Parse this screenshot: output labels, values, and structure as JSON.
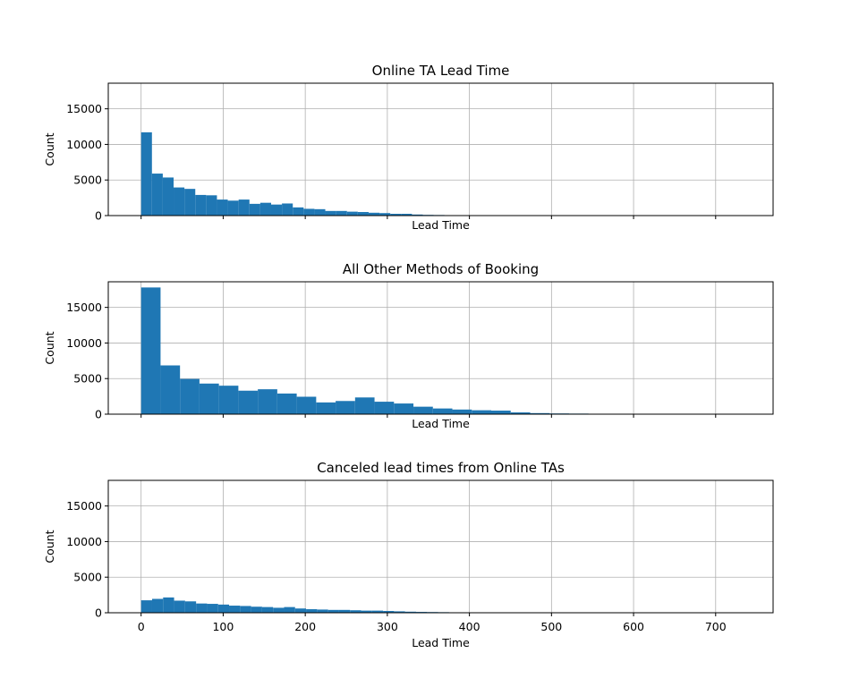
{
  "chart_data": [
    {
      "type": "bar",
      "title": "Online TA Lead Time",
      "xlabel": "Lead Time",
      "ylabel": "Count",
      "xlim": [
        -40,
        770
      ],
      "ylim": [
        0,
        18600
      ],
      "xticks": [
        0,
        100,
        200,
        300,
        400,
        500,
        600,
        700
      ],
      "yticks": [
        0,
        5000,
        10000,
        15000
      ],
      "show_xtick_labels": false,
      "grid": true,
      "bin_width": 13.2,
      "bin_start": 0,
      "color": "#1f77b4",
      "values": [
        11700,
        5900,
        5350,
        3950,
        3750,
        2900,
        2850,
        2250,
        2100,
        2250,
        1650,
        1800,
        1550,
        1700,
        1150,
        950,
        900,
        650,
        650,
        550,
        500,
        400,
        350,
        250,
        250,
        150,
        100,
        80,
        60,
        50,
        40,
        30,
        25,
        20,
        15,
        12,
        10,
        10,
        8,
        8,
        6,
        6,
        5,
        5,
        4,
        4,
        4,
        3,
        3,
        3,
        3,
        2,
        2,
        2,
        2
      ]
    },
    {
      "type": "bar",
      "title": "All Other Methods of Booking",
      "xlabel": "Lead Time",
      "ylabel": "Count",
      "xlim": [
        -40,
        770
      ],
      "ylim": [
        0,
        18600
      ],
      "xticks": [
        0,
        100,
        200,
        300,
        400,
        500,
        600,
        700
      ],
      "yticks": [
        0,
        5000,
        10000,
        15000
      ],
      "show_xtick_labels": false,
      "grid": true,
      "bin_width": 23.7,
      "bin_start": 0,
      "color": "#1f77b4",
      "values": [
        17800,
        6850,
        4950,
        4300,
        4000,
        3300,
        3500,
        2900,
        2450,
        1650,
        1850,
        2350,
        1750,
        1500,
        1050,
        800,
        650,
        550,
        500,
        250,
        150,
        100,
        80,
        60,
        40,
        20
      ]
    },
    {
      "type": "bar",
      "title": "Canceled lead times from Online TAs",
      "xlabel": "Lead Time",
      "ylabel": "Count",
      "xlim": [
        -40,
        770
      ],
      "ylim": [
        0,
        18600
      ],
      "xticks": [
        0,
        100,
        200,
        300,
        400,
        500,
        600,
        700
      ],
      "xticklabels": [
        "0",
        "100",
        "200",
        "300",
        "400",
        "500",
        "600",
        "700"
      ],
      "yticks": [
        0,
        5000,
        10000,
        15000
      ],
      "show_xtick_labels": true,
      "grid": true,
      "bin_width": 13.4,
      "bin_start": 0,
      "color": "#1f77b4",
      "values": [
        1750,
        1950,
        2150,
        1700,
        1600,
        1300,
        1250,
        1150,
        1000,
        950,
        850,
        800,
        700,
        800,
        600,
        500,
        450,
        400,
        400,
        350,
        300,
        300,
        250,
        200,
        150,
        120,
        100,
        80,
        60,
        40
      ]
    }
  ]
}
